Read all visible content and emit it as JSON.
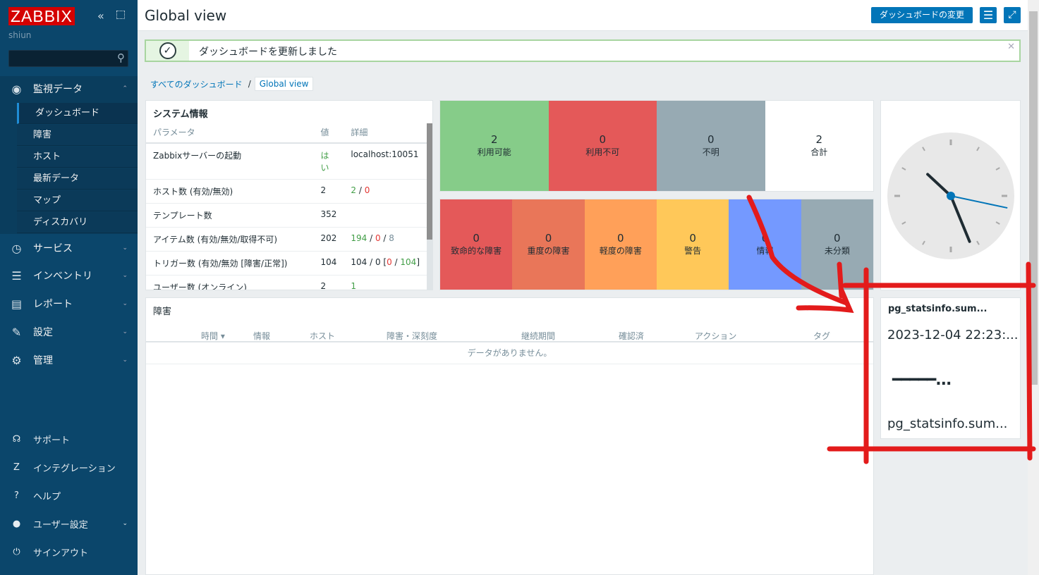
{
  "sidebar": {
    "logo": "ZABBIX",
    "username": "shiun",
    "search_placeholder": "",
    "sections": [
      {
        "label": "監視データ",
        "icon": "eye-icon",
        "expanded": true,
        "items": [
          "ダッシュボード",
          "障害",
          "ホスト",
          "最新データ",
          "マップ",
          "ディスカバリ"
        ],
        "active": "ダッシュボード"
      },
      {
        "label": "サービス",
        "icon": "clock-icon"
      },
      {
        "label": "インベントリ",
        "icon": "list-icon"
      },
      {
        "label": "レポート",
        "icon": "bar-chart-icon"
      },
      {
        "label": "設定",
        "icon": "wrench-icon"
      },
      {
        "label": "管理",
        "icon": "gear-icon"
      }
    ],
    "bottom": [
      {
        "label": "サポート",
        "icon": "headset-icon"
      },
      {
        "label": "インテグレーション",
        "icon": "zabbix-z-icon"
      },
      {
        "label": "ヘルプ",
        "icon": "help-icon"
      },
      {
        "label": "ユーザー設定",
        "icon": "user-icon"
      },
      {
        "label": "サインアウト",
        "icon": "power-icon"
      }
    ]
  },
  "header": {
    "title": "Global view",
    "edit_button": "ダッシュボードの変更"
  },
  "message": {
    "text": "ダッシュボードを更新しました"
  },
  "breadcrumb": {
    "all": "すべてのダッシュボード",
    "current": "Global view"
  },
  "system_info": {
    "title": "システム情報",
    "headers": [
      "パラメータ",
      "値",
      "詳細"
    ],
    "rows": [
      {
        "param": "Zabbixサーバーの起動",
        "value": "はい",
        "detail": "localhost:10051"
      },
      {
        "param": "ホスト数 (有効/無効)",
        "value": "2",
        "detail_parts": [
          "2",
          "0"
        ]
      },
      {
        "param": "テンプレート数",
        "value": "352",
        "detail": ""
      },
      {
        "param": "アイテム数 (有効/無効/取得不可)",
        "value": "202",
        "detail_parts": [
          "194",
          "0",
          "8"
        ]
      },
      {
        "param": "トリガー数 (有効/無効 [障害/正常])",
        "value": "104",
        "detail_parts": [
          "104",
          "0",
          "0",
          "104"
        ]
      },
      {
        "param": "ユーザー数 (オンライン)",
        "value": "2",
        "detail": "1"
      }
    ]
  },
  "host_availability": [
    {
      "count": "2",
      "label": "利用可能",
      "color": "#86cc89"
    },
    {
      "count": "0",
      "label": "利用不可",
      "color": "#e45959"
    },
    {
      "count": "0",
      "label": "不明",
      "color": "#97aab3"
    },
    {
      "count": "2",
      "label": "合計",
      "color": "#ffffff"
    }
  ],
  "severity": [
    {
      "count": "0",
      "label": "致命的な障害",
      "color": "#e45959"
    },
    {
      "count": "0",
      "label": "重度の障害",
      "color": "#e97659"
    },
    {
      "count": "0",
      "label": "軽度の障害",
      "color": "#ffa059"
    },
    {
      "count": "0",
      "label": "警告",
      "color": "#ffc859"
    },
    {
      "count": "0",
      "label": "情報",
      "color": "#7499ff"
    },
    {
      "count": "0",
      "label": "未分類",
      "color": "#97aab3"
    }
  ],
  "clock": {
    "hours": 10,
    "minutes": 26,
    "seconds": 17
  },
  "problems": {
    "title": "障害",
    "columns": [
      "時間 ▾",
      "情報",
      "ホスト",
      "障害・深刻度",
      "継続期間",
      "確認済",
      "アクション",
      "タグ"
    ],
    "empty": "データがありません。"
  },
  "item_value": {
    "title": "pg_statsinfo.sum...",
    "timestamp": "2023-12-04 22:23:...",
    "value": "━━━━━...",
    "footer": "pg_statsinfo.sum..."
  }
}
